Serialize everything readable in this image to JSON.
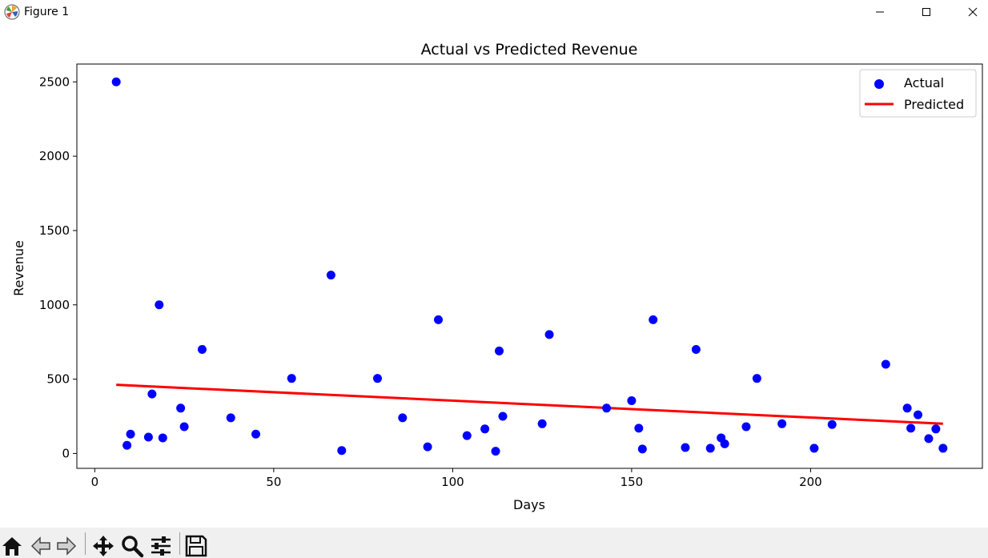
{
  "window": {
    "title": "Figure 1",
    "controls": [
      "minimize",
      "maximize",
      "close"
    ]
  },
  "toolbar": {
    "buttons": [
      {
        "name": "home-icon"
      },
      {
        "name": "back-icon"
      },
      {
        "name": "forward-icon"
      },
      {
        "name": "pan-icon"
      },
      {
        "name": "zoom-icon"
      },
      {
        "name": "configure-subplots-icon"
      },
      {
        "name": "save-icon"
      }
    ]
  },
  "chart_data": {
    "type": "scatter",
    "title": "Actual vs Predicted Revenue",
    "xlabel": "Days",
    "ylabel": "Revenue",
    "xlim": [
      -5,
      248
    ],
    "ylim": [
      -100,
      2620
    ],
    "xticks": [
      0,
      50,
      100,
      150,
      200
    ],
    "yticks": [
      0,
      500,
      1000,
      1500,
      2000,
      2500
    ],
    "grid": false,
    "legend_position": "top-right",
    "series": [
      {
        "name": "Actual",
        "kind": "scatter",
        "color": "#0000ff",
        "points": [
          [
            6,
            2500
          ],
          [
            9,
            55
          ],
          [
            10,
            130
          ],
          [
            15,
            110
          ],
          [
            16,
            400
          ],
          [
            18,
            1000
          ],
          [
            19,
            105
          ],
          [
            24,
            305
          ],
          [
            25,
            180
          ],
          [
            30,
            700
          ],
          [
            38,
            240
          ],
          [
            45,
            130
          ],
          [
            55,
            505
          ],
          [
            66,
            1200
          ],
          [
            69,
            20
          ],
          [
            79,
            505
          ],
          [
            86,
            240
          ],
          [
            93,
            45
          ],
          [
            96,
            900
          ],
          [
            104,
            120
          ],
          [
            109,
            165
          ],
          [
            112,
            15
          ],
          [
            113,
            690
          ],
          [
            114,
            250
          ],
          [
            125,
            200
          ],
          [
            127,
            800
          ],
          [
            143,
            305
          ],
          [
            150,
            355
          ],
          [
            152,
            170
          ],
          [
            153,
            30
          ],
          [
            156,
            900
          ],
          [
            165,
            40
          ],
          [
            168,
            700
          ],
          [
            172,
            35
          ],
          [
            175,
            105
          ],
          [
            176,
            65
          ],
          [
            182,
            180
          ],
          [
            185,
            505
          ],
          [
            192,
            200
          ],
          [
            201,
            35
          ],
          [
            206,
            195
          ],
          [
            221,
            600
          ],
          [
            227,
            305
          ],
          [
            228,
            170
          ],
          [
            230,
            260
          ],
          [
            233,
            100
          ],
          [
            235,
            165
          ],
          [
            237,
            35
          ]
        ]
      },
      {
        "name": "Predicted",
        "kind": "line",
        "color": "#ff0000",
        "points": [
          [
            6,
            462
          ],
          [
            237,
            200
          ]
        ]
      }
    ]
  }
}
